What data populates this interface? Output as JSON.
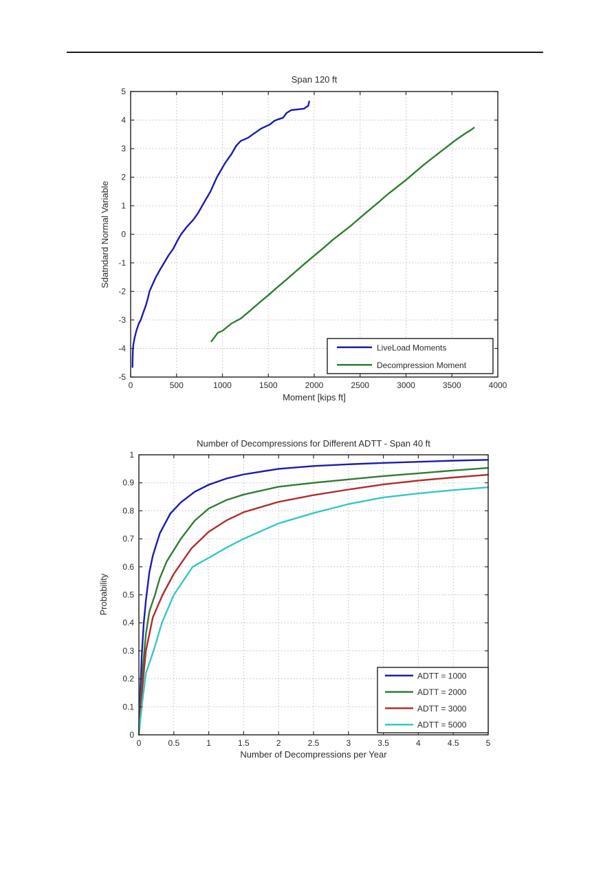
{
  "page": {
    "background": "#ffffff",
    "rule_color": "#1a1a1a",
    "axis_color": "#2b2b2b",
    "grid_color": "#bbbbbb"
  },
  "chart_data": [
    {
      "type": "line",
      "title": "Span 120 ft",
      "xlabel": "Moment [kips ft]",
      "ylabel": "Sdatndard Normal Variable",
      "xlim": [
        0,
        4000
      ],
      "ylim": [
        -5,
        5
      ],
      "xtick_values": [
        0,
        500,
        1000,
        1500,
        2000,
        2500,
        3000,
        3500,
        4000
      ],
      "xtick_labels": [
        "0",
        "500",
        "1000",
        "1500",
        "2000",
        "2500",
        "3000",
        "3500",
        "4000"
      ],
      "ytick_values": [
        -5,
        -4,
        -3,
        -2,
        -1,
        0,
        1,
        2,
        3,
        4,
        5
      ],
      "ytick_labels": [
        "-5",
        "-4",
        "-3",
        "-2",
        "-1",
        "0",
        "1",
        "2",
        "3",
        "4",
        "5"
      ],
      "grid": true,
      "legend_position": "lower-right",
      "series": [
        {
          "name": "LiveLoad Moments",
          "color": "#1b1bb0",
          "points": [
            [
              20,
              -4.65
            ],
            [
              22,
              -4.35
            ],
            [
              25,
              -4.05
            ],
            [
              30,
              -3.85
            ],
            [
              45,
              -3.6
            ],
            [
              65,
              -3.35
            ],
            [
              90,
              -3.12
            ],
            [
              110,
              -3.0
            ],
            [
              140,
              -2.72
            ],
            [
              165,
              -2.5
            ],
            [
              185,
              -2.28
            ],
            [
              205,
              -2.0
            ],
            [
              240,
              -1.75
            ],
            [
              275,
              -1.5
            ],
            [
              320,
              -1.24
            ],
            [
              365,
              -1.0
            ],
            [
              415,
              -0.73
            ],
            [
              465,
              -0.5
            ],
            [
              510,
              -0.22
            ],
            [
              550,
              0.0
            ],
            [
              610,
              0.25
            ],
            [
              680,
              0.5
            ],
            [
              730,
              0.72
            ],
            [
              780,
              1.0
            ],
            [
              825,
              1.25
            ],
            [
              870,
              1.5
            ],
            [
              905,
              1.75
            ],
            [
              940,
              2.0
            ],
            [
              985,
              2.25
            ],
            [
              1030,
              2.5
            ],
            [
              1100,
              2.82
            ],
            [
              1150,
              3.1
            ],
            [
              1200,
              3.27
            ],
            [
              1280,
              3.38
            ],
            [
              1330,
              3.5
            ],
            [
              1420,
              3.7
            ],
            [
              1520,
              3.85
            ],
            [
              1565,
              3.97
            ],
            [
              1610,
              4.03
            ],
            [
              1660,
              4.08
            ],
            [
              1700,
              4.25
            ],
            [
              1750,
              4.35
            ],
            [
              1890,
              4.4
            ],
            [
              1915,
              4.46
            ],
            [
              1935,
              4.5
            ],
            [
              1945,
              4.65
            ]
          ]
        },
        {
          "name": "Decompression Moment",
          "color": "#2e7d32",
          "points": [
            [
              880,
              -3.75
            ],
            [
              950,
              -3.45
            ],
            [
              1000,
              -3.38
            ],
            [
              1100,
              -3.12
            ],
            [
              1200,
              -2.95
            ],
            [
              1300,
              -2.68
            ],
            [
              1400,
              -2.4
            ],
            [
              1500,
              -2.13
            ],
            [
              1600,
              -1.85
            ],
            [
              1700,
              -1.58
            ],
            [
              1800,
              -1.3
            ],
            [
              1900,
              -1.02
            ],
            [
              2000,
              -0.75
            ],
            [
              2100,
              -0.48
            ],
            [
              2200,
              -0.2
            ],
            [
              2300,
              0.05
            ],
            [
              2400,
              0.3
            ],
            [
              2500,
              0.58
            ],
            [
              2600,
              0.85
            ],
            [
              2700,
              1.12
            ],
            [
              2800,
              1.4
            ],
            [
              2900,
              1.65
            ],
            [
              3000,
              1.9
            ],
            [
              3100,
              2.18
            ],
            [
              3200,
              2.45
            ],
            [
              3300,
              2.7
            ],
            [
              3400,
              2.95
            ],
            [
              3480,
              3.15
            ],
            [
              3550,
              3.32
            ],
            [
              3610,
              3.45
            ],
            [
              3660,
              3.56
            ],
            [
              3710,
              3.66
            ],
            [
              3740,
              3.73
            ]
          ]
        }
      ]
    },
    {
      "type": "line",
      "title": "Number of Decompressions for Different ADTT - Span 40 ft",
      "xlabel": "Number of Decompressions per Year",
      "ylabel": "Probability",
      "xlim": [
        0,
        5
      ],
      "ylim": [
        0,
        1
      ],
      "xtick_values": [
        0,
        0.5,
        1,
        1.5,
        2,
        2.5,
        3,
        3.5,
        4,
        4.5,
        5
      ],
      "xtick_labels": [
        "0",
        "0.5",
        "1",
        "1.5",
        "2",
        "2.5",
        "3",
        "3.5",
        "4",
        "4.5",
        "5"
      ],
      "ytick_values": [
        0,
        0.1,
        0.2,
        0.3,
        0.4,
        0.5,
        0.6,
        0.7,
        0.8,
        0.9,
        1
      ],
      "ytick_labels": [
        "0",
        "0.1",
        "0.2",
        "0.3",
        "0.4",
        "0.5",
        "0.6",
        "0.7",
        "0.8",
        "0.9",
        "1"
      ],
      "grid": true,
      "legend_position": "lower-right",
      "series": [
        {
          "name": "ADTT = 1000",
          "color": "#1b1bb0",
          "points": [
            [
              0,
              0
            ],
            [
              0.02,
              0.15
            ],
            [
              0.04,
              0.28
            ],
            [
              0.07,
              0.4
            ],
            [
              0.1,
              0.48
            ],
            [
              0.15,
              0.58
            ],
            [
              0.2,
              0.64
            ],
            [
              0.3,
              0.72
            ],
            [
              0.45,
              0.79
            ],
            [
              0.6,
              0.83
            ],
            [
              0.8,
              0.868
            ],
            [
              1.0,
              0.893
            ],
            [
              1.25,
              0.915
            ],
            [
              1.5,
              0.93
            ],
            [
              2.0,
              0.95
            ],
            [
              2.5,
              0.96
            ],
            [
              3.0,
              0.966
            ],
            [
              3.5,
              0.971
            ],
            [
              4.0,
              0.975
            ],
            [
              4.5,
              0.979
            ],
            [
              5.0,
              0.982
            ]
          ]
        },
        {
          "name": "ADTT = 2000",
          "color": "#2e7d32",
          "points": [
            [
              0,
              0
            ],
            [
              0.02,
              0.1
            ],
            [
              0.05,
              0.22
            ],
            [
              0.1,
              0.36
            ],
            [
              0.15,
              0.44
            ],
            [
              0.23,
              0.5
            ],
            [
              0.3,
              0.56
            ],
            [
              0.4,
              0.62
            ],
            [
              0.6,
              0.7
            ],
            [
              0.8,
              0.765
            ],
            [
              1.0,
              0.808
            ],
            [
              1.25,
              0.838
            ],
            [
              1.5,
              0.858
            ],
            [
              2.0,
              0.886
            ],
            [
              2.5,
              0.9
            ],
            [
              3.0,
              0.912
            ],
            [
              3.5,
              0.924
            ],
            [
              4.0,
              0.934
            ],
            [
              4.5,
              0.944
            ],
            [
              5.0,
              0.953
            ]
          ]
        },
        {
          "name": "ADTT = 3000",
          "color": "#b02c2c",
          "points": [
            [
              0,
              0
            ],
            [
              0.02,
              0.08
            ],
            [
              0.05,
              0.17
            ],
            [
              0.1,
              0.3
            ],
            [
              0.2,
              0.42
            ],
            [
              0.34,
              0.5
            ],
            [
              0.5,
              0.575
            ],
            [
              0.75,
              0.665
            ],
            [
              1.0,
              0.725
            ],
            [
              1.25,
              0.765
            ],
            [
              1.5,
              0.795
            ],
            [
              2.0,
              0.832
            ],
            [
              2.5,
              0.856
            ],
            [
              3.0,
              0.876
            ],
            [
              3.5,
              0.894
            ],
            [
              4.0,
              0.908
            ],
            [
              4.5,
              0.919
            ],
            [
              5.0,
              0.929
            ]
          ]
        },
        {
          "name": "ADTT = 5000",
          "color": "#36c6c6",
          "points": [
            [
              0,
              0
            ],
            [
              0.02,
              0.05
            ],
            [
              0.05,
              0.12
            ],
            [
              0.1,
              0.22
            ],
            [
              0.21,
              0.3
            ],
            [
              0.33,
              0.4
            ],
            [
              0.5,
              0.5
            ],
            [
              0.77,
              0.6
            ],
            [
              1.0,
              0.632
            ],
            [
              1.25,
              0.668
            ],
            [
              1.5,
              0.7
            ],
            [
              2.0,
              0.755
            ],
            [
              2.5,
              0.792
            ],
            [
              3.0,
              0.824
            ],
            [
              3.5,
              0.848
            ],
            [
              4.0,
              0.862
            ],
            [
              4.5,
              0.874
            ],
            [
              5.0,
              0.884
            ]
          ]
        }
      ]
    }
  ]
}
